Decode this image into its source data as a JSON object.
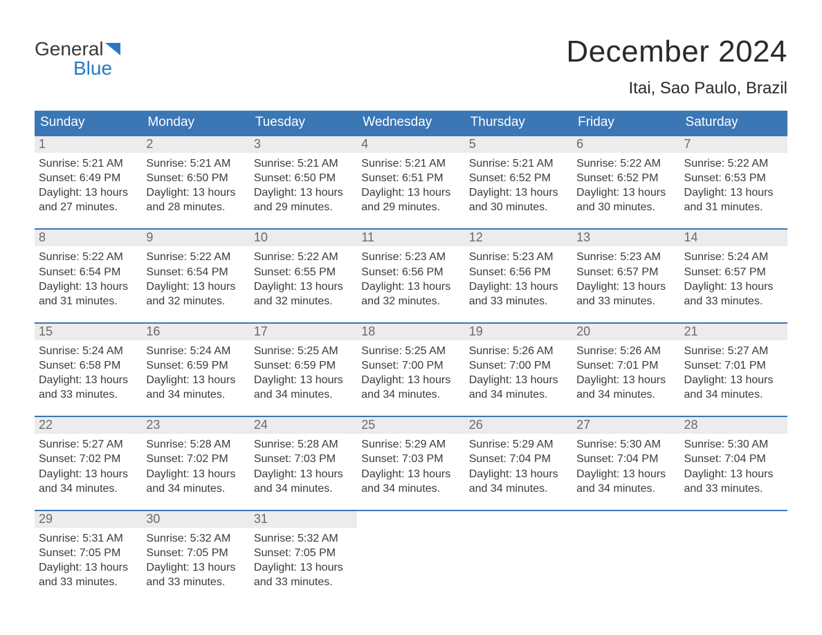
{
  "logo": {
    "text1": "General",
    "text2": "Blue"
  },
  "title": "December 2024",
  "location": "Itai, Sao Paulo, Brazil",
  "colors": {
    "header_bg": "#3b76b5",
    "header_text": "#ffffff",
    "daynum_bg": "#ececec",
    "daynum_text": "#6a6a6a",
    "body_text": "#3a3a3a",
    "page_bg": "#ffffff",
    "week_border": "#3b76b5",
    "logo_blue": "#2a78c4"
  },
  "weekday_labels": [
    "Sunday",
    "Monday",
    "Tuesday",
    "Wednesday",
    "Thursday",
    "Friday",
    "Saturday"
  ],
  "calendar": {
    "type": "table",
    "columns": 7,
    "weeks": [
      [
        {
          "n": "1",
          "sunrise": "Sunrise: 5:21 AM",
          "sunset": "Sunset: 6:49 PM",
          "d1": "Daylight: 13 hours",
          "d2": "and 27 minutes."
        },
        {
          "n": "2",
          "sunrise": "Sunrise: 5:21 AM",
          "sunset": "Sunset: 6:50 PM",
          "d1": "Daylight: 13 hours",
          "d2": "and 28 minutes."
        },
        {
          "n": "3",
          "sunrise": "Sunrise: 5:21 AM",
          "sunset": "Sunset: 6:50 PM",
          "d1": "Daylight: 13 hours",
          "d2": "and 29 minutes."
        },
        {
          "n": "4",
          "sunrise": "Sunrise: 5:21 AM",
          "sunset": "Sunset: 6:51 PM",
          "d1": "Daylight: 13 hours",
          "d2": "and 29 minutes."
        },
        {
          "n": "5",
          "sunrise": "Sunrise: 5:21 AM",
          "sunset": "Sunset: 6:52 PM",
          "d1": "Daylight: 13 hours",
          "d2": "and 30 minutes."
        },
        {
          "n": "6",
          "sunrise": "Sunrise: 5:22 AM",
          "sunset": "Sunset: 6:52 PM",
          "d1": "Daylight: 13 hours",
          "d2": "and 30 minutes."
        },
        {
          "n": "7",
          "sunrise": "Sunrise: 5:22 AM",
          "sunset": "Sunset: 6:53 PM",
          "d1": "Daylight: 13 hours",
          "d2": "and 31 minutes."
        }
      ],
      [
        {
          "n": "8",
          "sunrise": "Sunrise: 5:22 AM",
          "sunset": "Sunset: 6:54 PM",
          "d1": "Daylight: 13 hours",
          "d2": "and 31 minutes."
        },
        {
          "n": "9",
          "sunrise": "Sunrise: 5:22 AM",
          "sunset": "Sunset: 6:54 PM",
          "d1": "Daylight: 13 hours",
          "d2": "and 32 minutes."
        },
        {
          "n": "10",
          "sunrise": "Sunrise: 5:22 AM",
          "sunset": "Sunset: 6:55 PM",
          "d1": "Daylight: 13 hours",
          "d2": "and 32 minutes."
        },
        {
          "n": "11",
          "sunrise": "Sunrise: 5:23 AM",
          "sunset": "Sunset: 6:56 PM",
          "d1": "Daylight: 13 hours",
          "d2": "and 32 minutes."
        },
        {
          "n": "12",
          "sunrise": "Sunrise: 5:23 AM",
          "sunset": "Sunset: 6:56 PM",
          "d1": "Daylight: 13 hours",
          "d2": "and 33 minutes."
        },
        {
          "n": "13",
          "sunrise": "Sunrise: 5:23 AM",
          "sunset": "Sunset: 6:57 PM",
          "d1": "Daylight: 13 hours",
          "d2": "and 33 minutes."
        },
        {
          "n": "14",
          "sunrise": "Sunrise: 5:24 AM",
          "sunset": "Sunset: 6:57 PM",
          "d1": "Daylight: 13 hours",
          "d2": "and 33 minutes."
        }
      ],
      [
        {
          "n": "15",
          "sunrise": "Sunrise: 5:24 AM",
          "sunset": "Sunset: 6:58 PM",
          "d1": "Daylight: 13 hours",
          "d2": "and 33 minutes."
        },
        {
          "n": "16",
          "sunrise": "Sunrise: 5:24 AM",
          "sunset": "Sunset: 6:59 PM",
          "d1": "Daylight: 13 hours",
          "d2": "and 34 minutes."
        },
        {
          "n": "17",
          "sunrise": "Sunrise: 5:25 AM",
          "sunset": "Sunset: 6:59 PM",
          "d1": "Daylight: 13 hours",
          "d2": "and 34 minutes."
        },
        {
          "n": "18",
          "sunrise": "Sunrise: 5:25 AM",
          "sunset": "Sunset: 7:00 PM",
          "d1": "Daylight: 13 hours",
          "d2": "and 34 minutes."
        },
        {
          "n": "19",
          "sunrise": "Sunrise: 5:26 AM",
          "sunset": "Sunset: 7:00 PM",
          "d1": "Daylight: 13 hours",
          "d2": "and 34 minutes."
        },
        {
          "n": "20",
          "sunrise": "Sunrise: 5:26 AM",
          "sunset": "Sunset: 7:01 PM",
          "d1": "Daylight: 13 hours",
          "d2": "and 34 minutes."
        },
        {
          "n": "21",
          "sunrise": "Sunrise: 5:27 AM",
          "sunset": "Sunset: 7:01 PM",
          "d1": "Daylight: 13 hours",
          "d2": "and 34 minutes."
        }
      ],
      [
        {
          "n": "22",
          "sunrise": "Sunrise: 5:27 AM",
          "sunset": "Sunset: 7:02 PM",
          "d1": "Daylight: 13 hours",
          "d2": "and 34 minutes."
        },
        {
          "n": "23",
          "sunrise": "Sunrise: 5:28 AM",
          "sunset": "Sunset: 7:02 PM",
          "d1": "Daylight: 13 hours",
          "d2": "and 34 minutes."
        },
        {
          "n": "24",
          "sunrise": "Sunrise: 5:28 AM",
          "sunset": "Sunset: 7:03 PM",
          "d1": "Daylight: 13 hours",
          "d2": "and 34 minutes."
        },
        {
          "n": "25",
          "sunrise": "Sunrise: 5:29 AM",
          "sunset": "Sunset: 7:03 PM",
          "d1": "Daylight: 13 hours",
          "d2": "and 34 minutes."
        },
        {
          "n": "26",
          "sunrise": "Sunrise: 5:29 AM",
          "sunset": "Sunset: 7:04 PM",
          "d1": "Daylight: 13 hours",
          "d2": "and 34 minutes."
        },
        {
          "n": "27",
          "sunrise": "Sunrise: 5:30 AM",
          "sunset": "Sunset: 7:04 PM",
          "d1": "Daylight: 13 hours",
          "d2": "and 34 minutes."
        },
        {
          "n": "28",
          "sunrise": "Sunrise: 5:30 AM",
          "sunset": "Sunset: 7:04 PM",
          "d1": "Daylight: 13 hours",
          "d2": "and 33 minutes."
        }
      ],
      [
        {
          "n": "29",
          "sunrise": "Sunrise: 5:31 AM",
          "sunset": "Sunset: 7:05 PM",
          "d1": "Daylight: 13 hours",
          "d2": "and 33 minutes."
        },
        {
          "n": "30",
          "sunrise": "Sunrise: 5:32 AM",
          "sunset": "Sunset: 7:05 PM",
          "d1": "Daylight: 13 hours",
          "d2": "and 33 minutes."
        },
        {
          "n": "31",
          "sunrise": "Sunrise: 5:32 AM",
          "sunset": "Sunset: 7:05 PM",
          "d1": "Daylight: 13 hours",
          "d2": "and 33 minutes."
        },
        null,
        null,
        null,
        null
      ]
    ]
  }
}
